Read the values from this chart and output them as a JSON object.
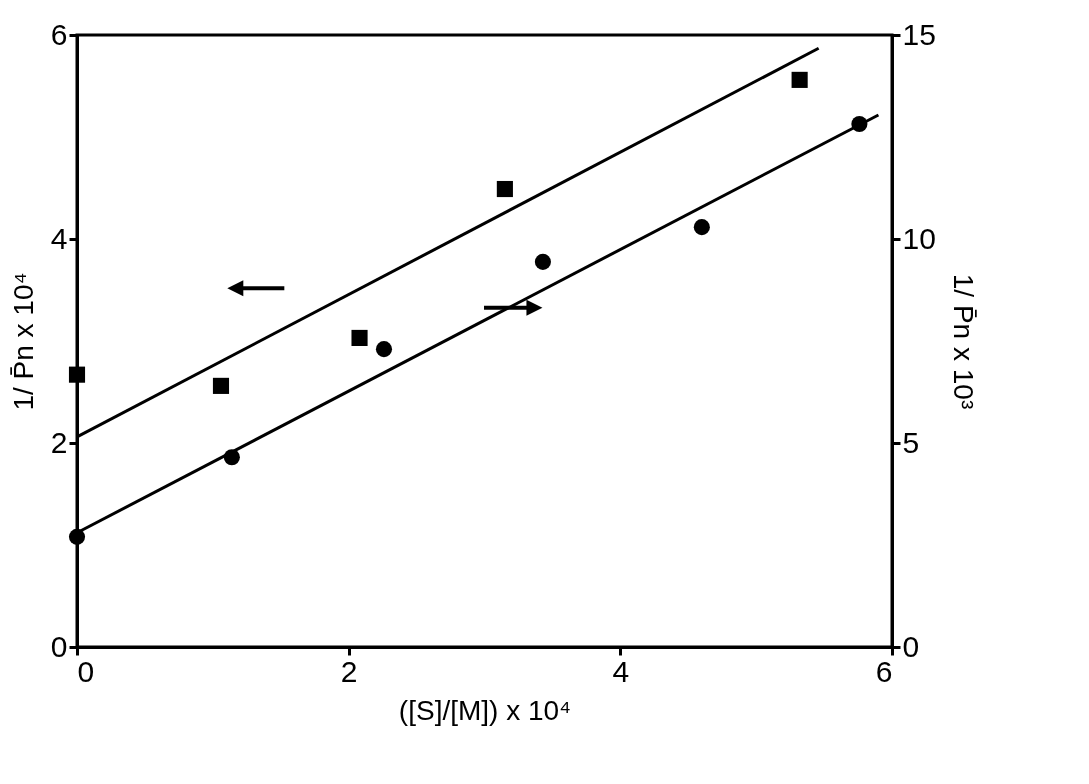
{
  "chart_data": {
    "type": "scatter",
    "xlabel": "([S]/[M]) x 10⁴",
    "ylabel": "1/ P̄n x 10⁴",
    "y2label": "1/ P̄n x 10³",
    "xlim": [
      0,
      6
    ],
    "xticks": [
      0,
      2,
      4,
      6
    ],
    "ylim": [
      0,
      6
    ],
    "yticks": [
      0,
      2,
      4,
      6
    ],
    "y2lim": [
      0,
      15
    ],
    "y2ticks": [
      0,
      5,
      10,
      15
    ],
    "grid": false,
    "series": [
      {
        "axis": "y",
        "marker": "square",
        "color": "#000000",
        "x": [
          0,
          1.06,
          2.08,
          3.15,
          5.32
        ],
        "values": [
          2.67,
          2.56,
          3.03,
          4.49,
          5.56
        ]
      },
      {
        "axis": "y2",
        "marker": "circle",
        "color": "#000000",
        "x": [
          0,
          1.14,
          2.26,
          3.43,
          4.6,
          5.76
        ],
        "values": [
          2.7,
          4.65,
          7.3,
          9.44,
          10.29,
          12.82
        ]
      },
      {
        "type": "line",
        "axis": "y",
        "line_style": "solid",
        "color": "#000000",
        "x": [
          0,
          5.46
        ],
        "values": [
          2.06,
          5.87
        ]
      },
      {
        "type": "line",
        "axis": "y2",
        "line_style": "solid",
        "color": "#000000",
        "x": [
          0,
          5.9
        ],
        "values": [
          2.8,
          13.04
        ]
      }
    ]
  }
}
